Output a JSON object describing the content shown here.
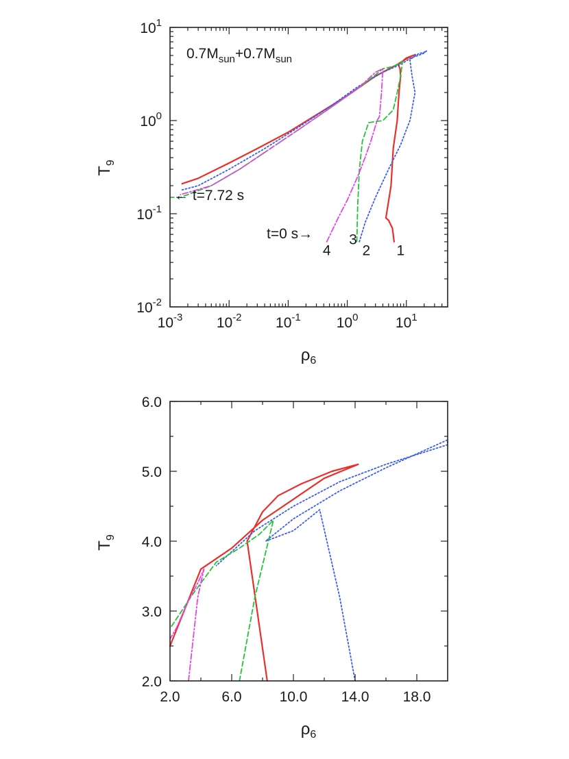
{
  "colors": {
    "track1": "#e8302a",
    "track2": "#3a5cf0",
    "track3": "#22c33a",
    "track4": "#e246e2",
    "frame": "#222222"
  },
  "chart_data": [
    {
      "type": "line",
      "xscale": "log",
      "yscale": "log",
      "xlim": [
        0.001,
        50
      ],
      "ylim": [
        0.01,
        10
      ],
      "x_ticks": [
        {
          "value": 0.001,
          "base": "10",
          "exp": "-3"
        },
        {
          "value": 0.01,
          "base": "10",
          "exp": "-2"
        },
        {
          "value": 0.1,
          "base": "10",
          "exp": "-1"
        },
        {
          "value": 1,
          "base": "10",
          "exp": "0"
        },
        {
          "value": 10,
          "base": "10",
          "exp": "1"
        }
      ],
      "y_ticks": [
        {
          "value": 0.01,
          "base": "10",
          "exp": "-2"
        },
        {
          "value": 0.1,
          "base": "10",
          "exp": "-1"
        },
        {
          "value": 1,
          "base": "10",
          "exp": "0"
        },
        {
          "value": 10,
          "base": "10",
          "exp": "1"
        }
      ],
      "xlabel": {
        "main": "ρ",
        "sub": "6"
      },
      "ylabel": {
        "main": "T",
        "sub": "9"
      },
      "title": {
        "a": "0.7M",
        "a_sub": "sun",
        "b": "+0.7M",
        "b_sub": "sun"
      },
      "annotations": {
        "t_end": "← t=7.72 s",
        "t_start": "t=0 s→",
        "labels": [
          {
            "text": "4",
            "x": 0.45,
            "y": 0.036
          },
          {
            "text": "3",
            "x": 1.25,
            "y": 0.047
          },
          {
            "text": "2",
            "x": 2.1,
            "y": 0.036
          },
          {
            "text": "1",
            "x": 8.0,
            "y": 0.036
          }
        ]
      },
      "series": [
        {
          "id": "1",
          "style": "solid",
          "color_key": "track1",
          "x": [
            6.2,
            5.8,
            5.0,
            4.5,
            5.5,
            6.0,
            7.0,
            7.5,
            8.0,
            7.8,
            7.3,
            8.5,
            10.0,
            13.0,
            14.2,
            13.0,
            10.0,
            7.0,
            3.0,
            1.0,
            0.3,
            0.1,
            0.03,
            0.01,
            0.003,
            0.0016
          ],
          "y": [
            0.05,
            0.07,
            0.085,
            0.09,
            0.2,
            0.5,
            1.0,
            2.0,
            3.0,
            3.6,
            4.0,
            4.3,
            4.7,
            5.0,
            5.1,
            5.0,
            4.6,
            4.0,
            3.0,
            1.85,
            1.15,
            0.75,
            0.5,
            0.35,
            0.24,
            0.21
          ]
        },
        {
          "id": "2",
          "style": "dotted",
          "color_key": "track2",
          "x": [
            1.6,
            2.0,
            3.0,
            5.0,
            8.0,
            10.0,
            11.5,
            14.0,
            12.5,
            11.5,
            13.0,
            16.0,
            20.0,
            22.0,
            20.0,
            16.0,
            12.0,
            8.0,
            4.0,
            1.5,
            0.5,
            0.15,
            0.04,
            0.01,
            0.003,
            0.0016
          ],
          "y": [
            0.05,
            0.08,
            0.15,
            0.3,
            0.55,
            0.8,
            1.0,
            2.0,
            3.0,
            4.45,
            4.8,
            5.2,
            5.4,
            5.6,
            5.3,
            5.0,
            4.7,
            4.0,
            3.3,
            2.3,
            1.4,
            0.85,
            0.5,
            0.3,
            0.2,
            0.18
          ]
        },
        {
          "id": "3",
          "style": "dashed",
          "color_key": "track3",
          "x": [
            1.45,
            1.5,
            1.6,
            1.8,
            2.3,
            4.0,
            6.0,
            7.0,
            8.0,
            8.6,
            6.0,
            4.0,
            3.0,
            1.5,
            0.5,
            0.15,
            0.05,
            0.015,
            0.005,
            0.0015,
            0.001
          ],
          "y": [
            0.05,
            0.12,
            0.3,
            0.6,
            0.95,
            1.0,
            1.3,
            2.0,
            3.0,
            4.3,
            3.8,
            3.6,
            3.1,
            2.2,
            1.35,
            0.8,
            0.5,
            0.3,
            0.2,
            0.15,
            0.15
          ]
        },
        {
          "id": "4",
          "style": "dashdot",
          "color_key": "track4",
          "x": [
            0.45,
            0.7,
            1.0,
            1.5,
            2.0,
            2.5,
            3.2,
            3.5,
            3.8,
            4.0,
            3.0,
            1.5,
            0.5,
            0.15,
            0.05,
            0.015,
            0.005,
            0.0015
          ],
          "y": [
            0.05,
            0.09,
            0.14,
            0.25,
            0.4,
            0.6,
            1.0,
            1.1,
            2.0,
            3.6,
            3.3,
            2.2,
            1.35,
            0.8,
            0.5,
            0.3,
            0.2,
            0.16
          ]
        }
      ]
    },
    {
      "type": "line",
      "xscale": "linear",
      "yscale": "linear",
      "xlim": [
        2.0,
        20.0
      ],
      "ylim": [
        2.0,
        6.0
      ],
      "x_ticks": [
        {
          "value": 2.0,
          "label": "2.0"
        },
        {
          "value": 6.0,
          "label": "6.0"
        },
        {
          "value": 10.0,
          "label": "10.0"
        },
        {
          "value": 14.0,
          "label": "14.0"
        },
        {
          "value": 18.0,
          "label": "18.0"
        }
      ],
      "y_ticks": [
        {
          "value": 2.0,
          "label": "2.0"
        },
        {
          "value": 3.0,
          "label": "3.0"
        },
        {
          "value": 4.0,
          "label": "4.0"
        },
        {
          "value": 5.0,
          "label": "5.0"
        },
        {
          "value": 6.0,
          "label": "6.0"
        }
      ],
      "xlabel": {
        "main": "ρ",
        "sub": "6"
      },
      "ylabel": {
        "main": "T",
        "sub": "9"
      },
      "series": [
        {
          "id": "1",
          "style": "solid",
          "color_key": "track1",
          "x": [
            8.3,
            7.0,
            8.0,
            9.0,
            10.5,
            12.5,
            14.2,
            12.0,
            10.0,
            8.0,
            6.0,
            4.0,
            2.0
          ],
          "y": [
            2.0,
            4.0,
            4.42,
            4.65,
            4.82,
            5.0,
            5.1,
            4.9,
            4.6,
            4.3,
            3.9,
            3.6,
            2.5
          ]
        },
        {
          "id": "2",
          "style": "dotted",
          "color_key": "track2",
          "x": [
            14.0,
            13.0,
            11.7,
            10.0,
            8.2,
            10.0,
            13.0,
            16.0,
            20.0,
            20.0,
            16.0,
            13.0,
            10.0,
            7.5,
            5.0
          ],
          "y": [
            2.0,
            3.2,
            4.45,
            4.15,
            4.0,
            4.32,
            4.72,
            5.05,
            5.45,
            5.38,
            5.1,
            4.85,
            4.5,
            4.15,
            3.65
          ]
        },
        {
          "id": "3",
          "style": "dashed",
          "color_key": "track3",
          "x": [
            6.5,
            7.5,
            8.7,
            7.8,
            6.5,
            5.0,
            3.5,
            2.0
          ],
          "y": [
            2.0,
            3.2,
            4.3,
            4.1,
            3.9,
            3.7,
            3.25,
            2.75
          ]
        },
        {
          "id": "4",
          "style": "dashdot",
          "color_key": "track4",
          "x": [
            3.2,
            3.8,
            4.2,
            3.8,
            3.2,
            2.4,
            2.0
          ],
          "y": [
            2.0,
            3.2,
            3.6,
            3.4,
            3.15,
            2.75,
            2.6
          ]
        }
      ]
    }
  ]
}
